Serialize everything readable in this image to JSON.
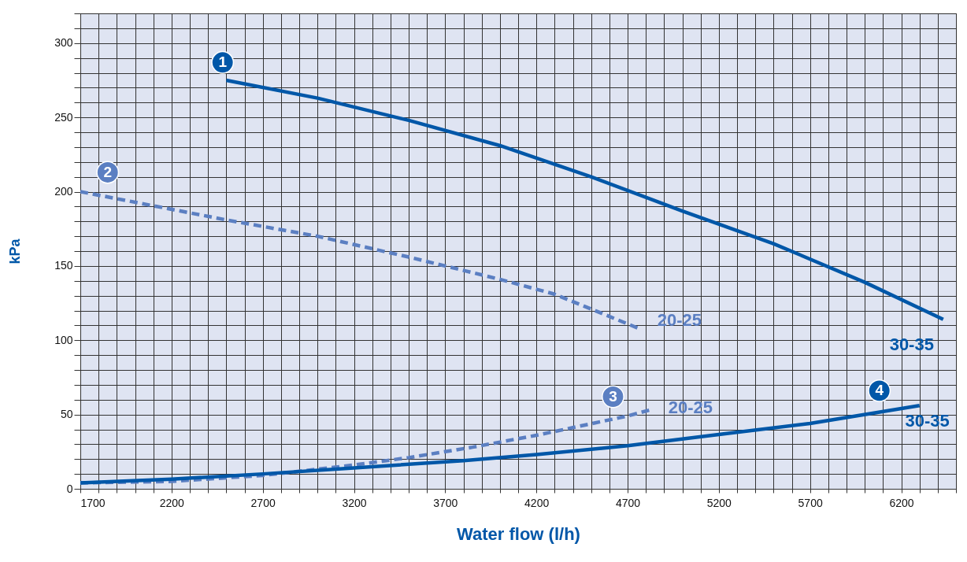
{
  "chart_data": {
    "type": "line",
    "xlabel": "Water flow (l/h)",
    "ylabel": "kPa",
    "xlim": [
      1700,
      6500
    ],
    "ylim": [
      0,
      320
    ],
    "xticks": [
      1700,
      {
        "value": 1800,
        "label": null
      },
      {
        "value": 1900,
        "label": null
      },
      {
        "value": 2000,
        "label": null
      },
      {
        "value": 2100,
        "label": null
      },
      2200,
      {
        "value": 2300,
        "label": null
      },
      {
        "value": 2400,
        "label": null
      },
      {
        "value": 2500,
        "label": null
      },
      {
        "value": 2600,
        "label": null
      },
      2700,
      {
        "value": 2800,
        "label": null
      },
      {
        "value": 2900,
        "label": null
      },
      {
        "value": 3000,
        "label": null
      },
      {
        "value": 3100,
        "label": null
      },
      3200,
      {
        "value": 3300,
        "label": null
      },
      {
        "value": 3400,
        "label": null
      },
      {
        "value": 3500,
        "label": null
      },
      {
        "value": 3600,
        "label": null
      },
      3700,
      {
        "value": 3800,
        "label": null
      },
      {
        "value": 3900,
        "label": null
      },
      {
        "value": 4000,
        "label": null
      },
      {
        "value": 4100,
        "label": null
      },
      4200,
      {
        "value": 4300,
        "label": null
      },
      {
        "value": 4400,
        "label": null
      },
      {
        "value": 4500,
        "label": null
      },
      {
        "value": 4600,
        "label": null
      },
      4700,
      {
        "value": 4800,
        "label": null
      },
      {
        "value": 4900,
        "label": null
      },
      {
        "value": 5000,
        "label": null
      },
      {
        "value": 5100,
        "label": null
      },
      5200,
      {
        "value": 5300,
        "label": null
      },
      {
        "value": 5400,
        "label": null
      },
      {
        "value": 5500,
        "label": null
      },
      {
        "value": 5600,
        "label": null
      },
      5700,
      {
        "value": 5800,
        "label": null
      },
      {
        "value": 5900,
        "label": null
      },
      {
        "value": 6000,
        "label": null
      },
      {
        "value": 6100,
        "label": null
      },
      6200,
      {
        "value": 6300,
        "label": null
      },
      {
        "value": 6400,
        "label": null
      },
      {
        "value": 6500,
        "label": null
      }
    ],
    "yticks": [
      0,
      {
        "value": 10,
        "label": null
      },
      {
        "value": 20,
        "label": null
      },
      {
        "value": 30,
        "label": null
      },
      {
        "value": 40,
        "label": null
      },
      50,
      {
        "value": 60,
        "label": null
      },
      {
        "value": 70,
        "label": null
      },
      {
        "value": 80,
        "label": null
      },
      {
        "value": 90,
        "label": null
      },
      100,
      {
        "value": 110,
        "label": null
      },
      {
        "value": 120,
        "label": null
      },
      {
        "value": 130,
        "label": null
      },
      {
        "value": 140,
        "label": null
      },
      150,
      {
        "value": 160,
        "label": null
      },
      {
        "value": 170,
        "label": null
      },
      {
        "value": 180,
        "label": null
      },
      {
        "value": 190,
        "label": null
      },
      200,
      {
        "value": 210,
        "label": null
      },
      {
        "value": 220,
        "label": null
      },
      {
        "value": 230,
        "label": null
      },
      {
        "value": 240,
        "label": null
      },
      250,
      {
        "value": 260,
        "label": null
      },
      {
        "value": 270,
        "label": null
      },
      {
        "value": 280,
        "label": null
      },
      {
        "value": 290,
        "label": null
      },
      300,
      {
        "value": 310,
        "label": null
      },
      {
        "value": 320,
        "label": null
      }
    ],
    "grid": true,
    "legend": false,
    "series": [
      {
        "name": "30-35",
        "color": "#0057a8",
        "line_style": "solid",
        "x": [
          2500,
          3000,
          3500,
          4000,
          4500,
          5000,
          5500,
          6000,
          6430
        ],
        "values": [
          275,
          263,
          248,
          231,
          210,
          187,
          165,
          139,
          114
        ]
      },
      {
        "name": "20-25",
        "color": "#5b7fc2",
        "line_style": "dashed",
        "x": [
          1700,
          2500,
          3000,
          3500,
          4000,
          4300,
          4760
        ],
        "values": [
          200,
          181,
          170,
          156,
          141,
          131,
          108
        ]
      },
      {
        "name": "20-25",
        "color": "#5b7fc2",
        "line_style": "dashed",
        "x": [
          1700,
          2200,
          2700,
          3200,
          3500,
          3850,
          4200,
          4700,
          4820
        ],
        "values": [
          4,
          5,
          9,
          16,
          21,
          28,
          36,
          49,
          53
        ]
      },
      {
        "name": "30-35",
        "color": "#0057a8",
        "line_style": "solid",
        "x": [
          1700,
          2200,
          2700,
          3200,
          3800,
          4200,
          4700,
          5200,
          5700,
          6300
        ],
        "values": [
          4,
          6.5,
          10,
          14,
          19,
          23,
          29,
          36.5,
          44,
          56
        ]
      }
    ],
    "annotations": [
      {
        "text": "1",
        "x": 2480,
        "y": 287
      },
      {
        "text": "2",
        "x": 1850,
        "y": 213
      },
      {
        "text": "3",
        "x": 4620,
        "y": 62
      },
      {
        "text": "4",
        "x": 6080,
        "y": 66
      }
    ]
  }
}
